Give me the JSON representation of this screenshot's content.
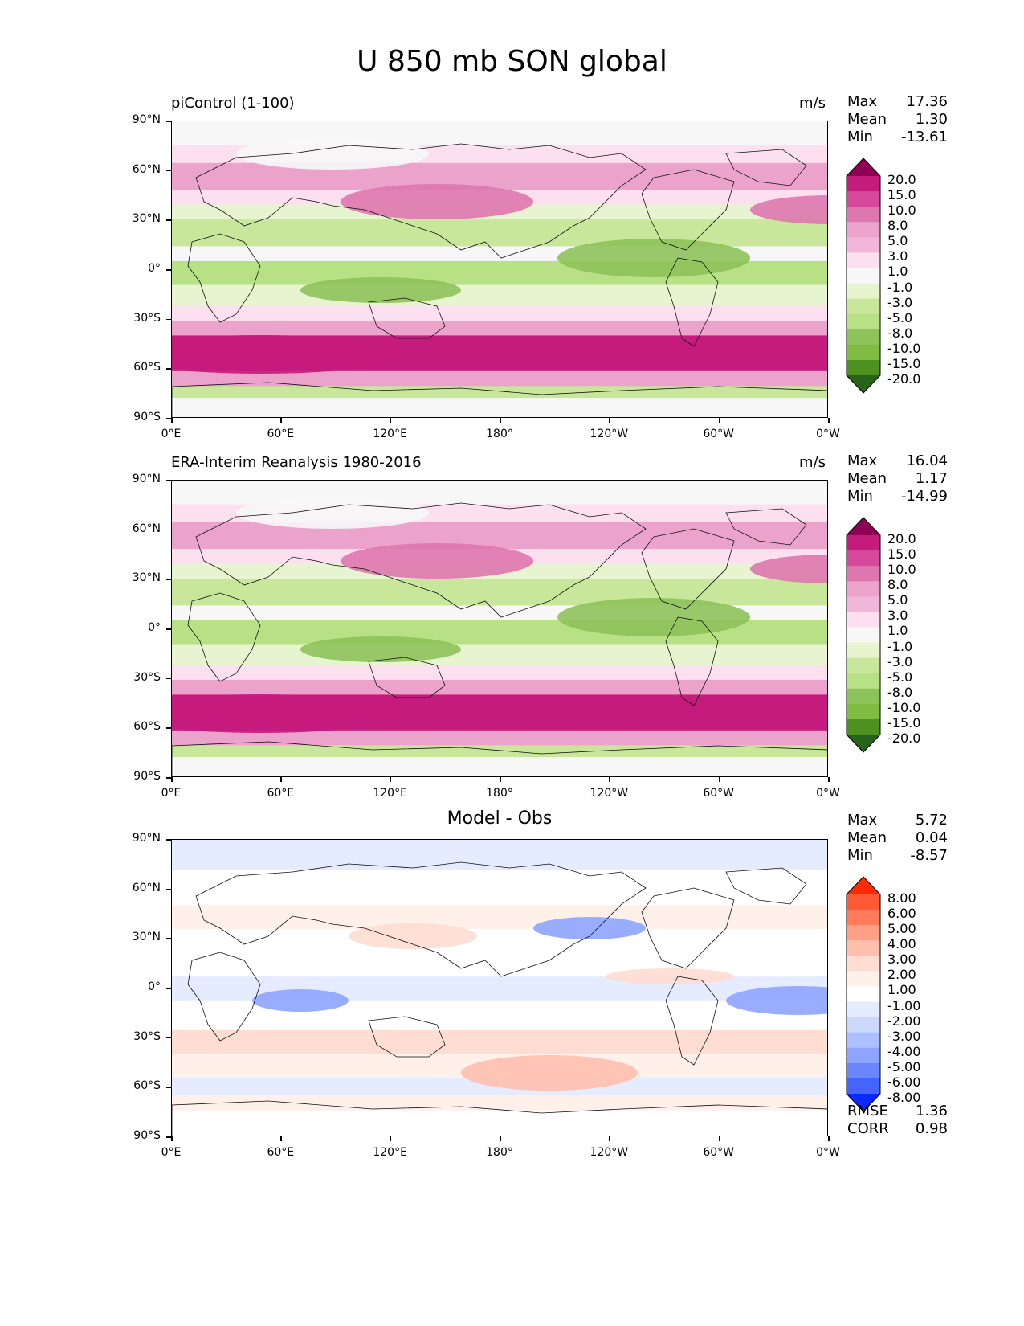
{
  "title": "U 850 mb SON global",
  "y_ticks": [
    "90°N",
    "60°N",
    "30°N",
    "0°",
    "30°S",
    "60°S",
    "90°S"
  ],
  "x_ticks": [
    "0°E",
    "60°E",
    "120°E",
    "180°",
    "120°W",
    "60°W",
    "0°W"
  ],
  "panels": [
    {
      "left_title": "piControl (1-100)",
      "units": "m/s",
      "stats": [
        [
          "Max",
          "17.36"
        ],
        [
          "Mean",
          "1.30"
        ],
        [
          "Min",
          "-13.61"
        ]
      ],
      "colorbar_labels": [
        "20.0",
        "15.0",
        "10.0",
        "8.0",
        "5.0",
        "3.0",
        "1.0",
        "-1.0",
        "-3.0",
        "-5.0",
        "-8.0",
        "-10.0",
        "-15.0",
        "-20.0"
      ]
    },
    {
      "left_title": "ERA-Interim Reanalysis 1980-2016",
      "units": "m/s",
      "stats": [
        [
          "Max",
          "16.04"
        ],
        [
          "Mean",
          "1.17"
        ],
        [
          "Min",
          "-14.99"
        ]
      ],
      "colorbar_labels": [
        "20.0",
        "15.0",
        "10.0",
        "8.0",
        "5.0",
        "3.0",
        "1.0",
        "-1.0",
        "-3.0",
        "-5.0",
        "-8.0",
        "-10.0",
        "-15.0",
        "-20.0"
      ]
    },
    {
      "center_title": "Model - Obs",
      "stats": [
        [
          "Max",
          "5.72"
        ],
        [
          "Mean",
          "0.04"
        ],
        [
          "Min",
          "-8.57"
        ]
      ],
      "colorbar_labels": [
        "8.00",
        "6.00",
        "5.00",
        "4.00",
        "3.00",
        "2.00",
        "1.00",
        "-1.00",
        "-2.00",
        "-3.00",
        "-4.00",
        "-5.00",
        "-6.00",
        "-8.00"
      ],
      "extra_stats": [
        [
          "RMSE",
          "1.36"
        ],
        [
          "CORR",
          "0.98"
        ]
      ]
    }
  ],
  "colors": {
    "wind_scale": [
      "#8e0152",
      "#c51b7d",
      "#d6499a",
      "#de77ae",
      "#eba3cb",
      "#f1b6da",
      "#fde0ef",
      "#f7f7f7",
      "#e6f5d0",
      "#c8e79a",
      "#b8e186",
      "#8ec25a",
      "#7fbc41",
      "#4d9221",
      "#276419"
    ],
    "diff_scale": [
      "#ff2a00",
      "#ff5a36",
      "#ff7b5c",
      "#ff9f86",
      "#ffbfae",
      "#ffddd2",
      "#fff0ea",
      "#ffffff",
      "#e6ecff",
      "#ccd8ff",
      "#adbfff",
      "#8ea4ff",
      "#6b86ff",
      "#4464ff",
      "#0a2aff"
    ]
  }
}
